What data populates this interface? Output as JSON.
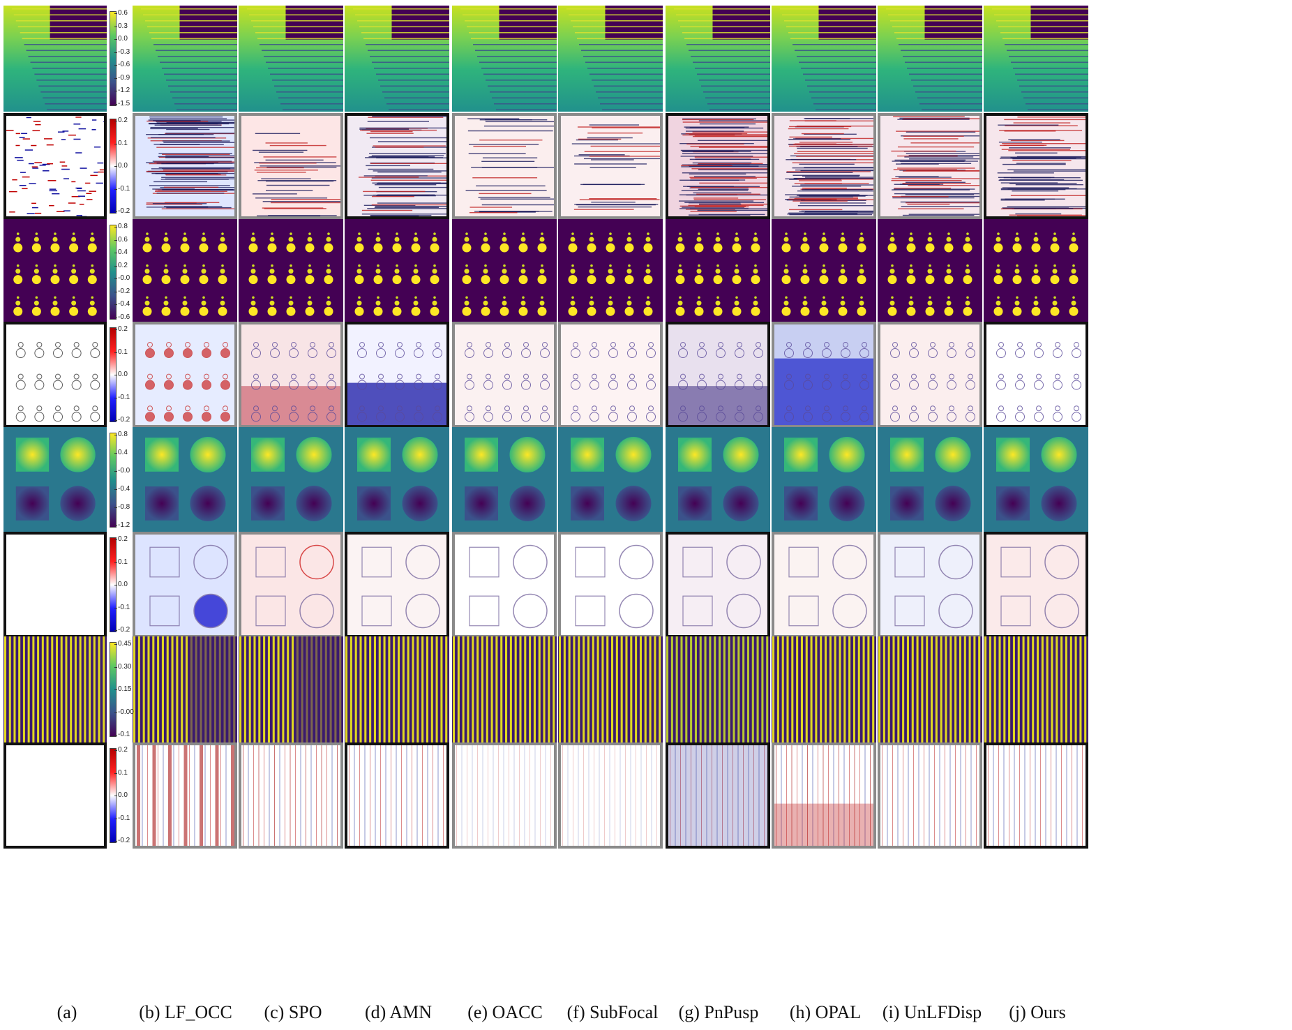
{
  "figure": {
    "column_labels": [
      "(a)",
      "(b) LF_OCC",
      "(c) SPO",
      "(d) AMN",
      "(e) OACC",
      "(f) SubFocal",
      "(g) PnPusp",
      "(h) OPAL",
      "(i) UnLFDisp",
      "(j) Ours"
    ],
    "rows": [
      {
        "id": "stripes-disparity",
        "kind": "disparity",
        "scene": "stripes",
        "colorbar_ticks": [
          "0.6",
          "0.3",
          "0.0",
          "-0.3",
          "-0.6",
          "-0.9",
          "-1.2",
          "-1.5"
        ]
      },
      {
        "id": "stripes-error",
        "kind": "error",
        "scene": "stripes",
        "colorbar_ticks": [
          "0.2",
          "0.1",
          "0.0",
          "-0.1",
          "-0.2"
        ]
      },
      {
        "id": "dots-disparity",
        "kind": "disparity",
        "scene": "dots",
        "colorbar_ticks": [
          "0.8",
          "0.6",
          "0.4",
          "0.2",
          "-0.0",
          "-0.2",
          "-0.4",
          "-0.6"
        ]
      },
      {
        "id": "dots-error",
        "kind": "error",
        "scene": "dots",
        "colorbar_ticks": [
          "0.2",
          "0.1",
          "0.0",
          "-0.1",
          "-0.2"
        ]
      },
      {
        "id": "pyramids-disparity",
        "kind": "disparity",
        "scene": "pyramids",
        "colorbar_ticks": [
          "0.8",
          "0.4",
          "-0.0",
          "-0.4",
          "-0.8",
          "-1.2"
        ]
      },
      {
        "id": "pyramids-error",
        "kind": "error",
        "scene": "pyramids",
        "colorbar_ticks": [
          "0.2",
          "0.1",
          "0.0",
          "-0.1",
          "-0.2"
        ]
      },
      {
        "id": "backgammon-disparity",
        "kind": "disparity",
        "scene": "backgammon",
        "colorbar_ticks": [
          "0.45",
          "0.30",
          "0.15",
          "-0.00",
          "-0.1"
        ]
      },
      {
        "id": "backgammon-error",
        "kind": "error",
        "scene": "backgammon",
        "colorbar_ticks": [
          "0.2",
          "0.1",
          "0.0",
          "-0.1",
          "-0.2"
        ]
      }
    ]
  },
  "colors": {
    "viridis_dark": "#440154",
    "viridis_mid": "#21908c",
    "viridis_bright": "#fde725",
    "error_negative": "#0000b4",
    "error_zero": "#ffffff",
    "error_positive": "#b40000"
  }
}
